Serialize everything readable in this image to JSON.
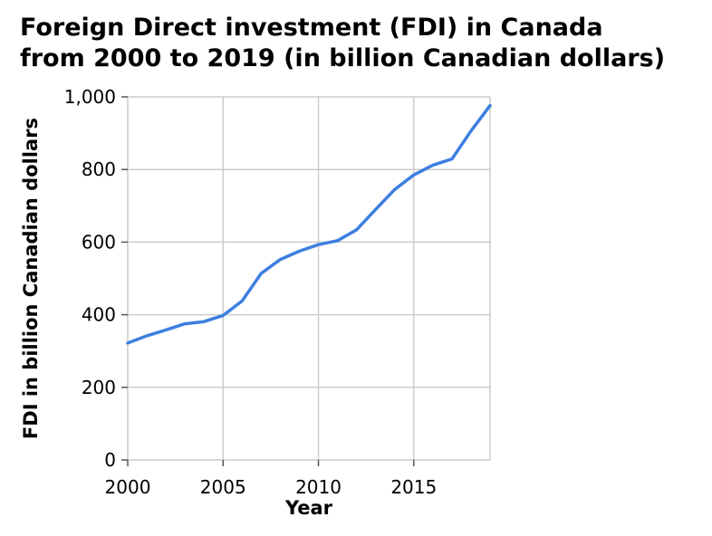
{
  "chart_data": {
    "type": "line",
    "title_lines": [
      "Foreign Direct investment (FDI) in Canada",
      "from 2000 to 2019 (in billion Canadian dollars)"
    ],
    "xlabel": "Year",
    "ylabel": "FDI in billion Canadian dollars",
    "xlim": [
      2000,
      2019
    ],
    "ylim": [
      0,
      1000
    ],
    "x_ticks": [
      2000,
      2005,
      2010,
      2015
    ],
    "x_tick_labels": [
      "2000",
      "2005",
      "2010",
      "2015"
    ],
    "y_ticks": [
      0,
      200,
      400,
      600,
      800,
      1000
    ],
    "y_tick_labels": [
      "0",
      "200",
      "400",
      "600",
      "800",
      "1,000"
    ],
    "grid": true,
    "line_color": "#3d7fe0",
    "grid_color": "#cccccc",
    "series": [
      {
        "x": [
          2000,
          2001,
          2002,
          2003,
          2004,
          2005,
          2006,
          2007,
          2008,
          2009,
          2010,
          2011,
          2012,
          2013,
          2014,
          2015,
          2016,
          2017,
          2018,
          2019
        ],
        "values": [
          322,
          342,
          358,
          375,
          381,
          398,
          438,
          514,
          552,
          575,
          593,
          604,
          634,
          690,
          745,
          785,
          812,
          829,
          906,
          976
        ]
      }
    ]
  }
}
